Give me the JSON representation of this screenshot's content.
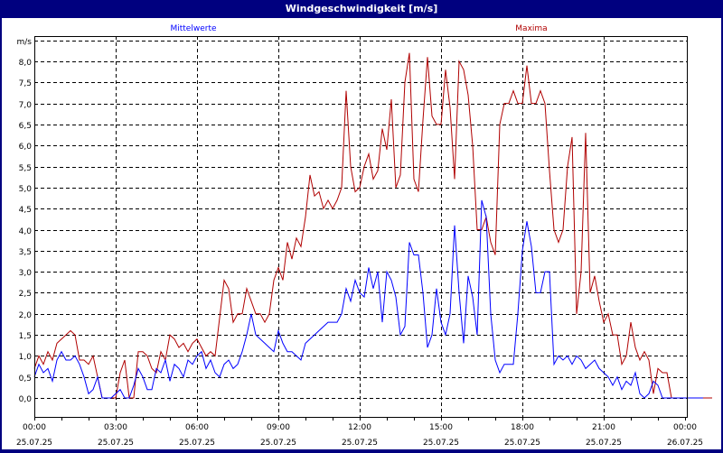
{
  "window": {
    "title": "Windgeschwindigkeit [m/s]"
  },
  "legend": {
    "mean_label": "Mittelwerte",
    "max_label": "Maxima",
    "mean_color": "#0000ff",
    "max_color": "#b00000"
  },
  "axis": {
    "y_unit": "m/s",
    "y_ticks": [
      "0,0",
      "0,5",
      "1,0",
      "1,5",
      "2,0",
      "2,5",
      "3,0",
      "3,5",
      "4,0",
      "4,5",
      "5,0",
      "5,5",
      "6,0",
      "6,5",
      "7,0",
      "7,5",
      "8,0"
    ],
    "x_ticks": [
      {
        "time": "00:00",
        "date": "25.07.25"
      },
      {
        "time": "03:00",
        "date": "25.07.25"
      },
      {
        "time": "06:00",
        "date": "25.07.25"
      },
      {
        "time": "09:00",
        "date": "25.07.25"
      },
      {
        "time": "12:00",
        "date": "25.07.25"
      },
      {
        "time": "15:00",
        "date": "25.07.25"
      },
      {
        "time": "18:00",
        "date": "25.07.25"
      },
      {
        "time": "21:00",
        "date": "25.07.25"
      },
      {
        "time": "00:00",
        "date": "26.07.25"
      }
    ]
  },
  "chart_data": {
    "type": "line",
    "title": "Windgeschwindigkeit [m/s]",
    "xlabel": "",
    "ylabel": "m/s",
    "ylim": [
      -0.4,
      8.5
    ],
    "x_range": [
      "25.07.25 00:00",
      "26.07.25 00:00"
    ],
    "x_step_minutes": 10,
    "grid": true,
    "legend_position": "top",
    "series": [
      {
        "name": "Mittelwerte",
        "color": "#0000ff",
        "values": [
          0.5,
          0.8,
          0.6,
          0.7,
          0.4,
          0.9,
          1.1,
          0.9,
          0.9,
          1.0,
          0.8,
          0.5,
          0.1,
          0.2,
          0.5,
          0.0,
          0.0,
          0.0,
          0.1,
          0.2,
          0.0,
          0.0,
          0.3,
          0.7,
          0.5,
          0.2,
          0.2,
          0.7,
          0.6,
          0.9,
          0.4,
          0.8,
          0.7,
          0.5,
          0.9,
          0.8,
          1.0,
          1.1,
          0.7,
          0.9,
          0.6,
          0.5,
          0.8,
          0.9,
          0.7,
          0.8,
          1.1,
          1.5,
          2.0,
          1.5,
          1.4,
          1.3,
          1.2,
          1.1,
          1.6,
          1.3,
          1.1,
          1.1,
          1.0,
          0.9,
          1.3,
          1.4,
          1.5,
          1.6,
          1.7,
          1.8,
          1.8,
          1.8,
          2.0,
          2.6,
          2.3,
          2.8,
          2.5,
          2.4,
          3.1,
          2.6,
          3.0,
          1.8,
          3.0,
          2.8,
          2.4,
          1.5,
          1.7,
          3.7,
          3.4,
          3.4,
          2.5,
          1.2,
          1.5,
          2.6,
          1.8,
          1.5,
          2.0,
          4.1,
          2.5,
          1.3,
          2.9,
          2.4,
          1.5,
          4.7,
          4.3,
          2.0,
          0.9,
          0.6,
          0.8,
          0.8,
          0.8,
          2.0,
          3.5,
          4.2,
          3.6,
          2.5,
          2.5,
          3.0,
          3.0,
          0.8,
          1.0,
          0.9,
          1.0,
          0.8,
          1.0,
          0.9,
          0.7,
          0.8,
          0.9,
          0.7,
          0.6,
          0.5,
          0.3,
          0.5,
          0.2,
          0.4,
          0.3,
          0.6,
          0.1,
          0.0,
          0.1,
          0.4,
          0.3,
          0.0,
          0.0,
          0.0,
          0.0,
          0.0,
          0.0,
          0.0,
          0.0,
          0.0,
          0.0
        ]
      },
      {
        "name": "Maxima",
        "color": "#b00000",
        "values": [
          0.7,
          1.0,
          0.8,
          1.1,
          0.9,
          1.3,
          1.4,
          1.5,
          1.6,
          1.5,
          0.9,
          0.9,
          0.8,
          1.0,
          0.5,
          0.0,
          0.0,
          0.0,
          0.0,
          0.6,
          0.9,
          0.0,
          0.0,
          1.1,
          1.1,
          1.0,
          0.7,
          0.6,
          1.1,
          0.9,
          1.5,
          1.4,
          1.2,
          1.3,
          1.1,
          1.3,
          1.4,
          1.2,
          1.0,
          1.1,
          1.0,
          1.9,
          2.8,
          2.6,
          1.8,
          2.0,
          2.0,
          2.6,
          2.3,
          2.0,
          2.0,
          1.8,
          2.0,
          2.8,
          3.1,
          2.8,
          3.7,
          3.3,
          3.8,
          3.6,
          4.3,
          5.3,
          4.8,
          4.9,
          4.5,
          4.7,
          4.5,
          4.7,
          5.0,
          7.3,
          5.5,
          4.9,
          5.0,
          5.5,
          5.8,
          5.2,
          5.4,
          6.4,
          5.9,
          7.1,
          5.0,
          5.3,
          7.5,
          8.2,
          5.2,
          4.9,
          6.6,
          8.1,
          6.7,
          6.5,
          6.5,
          7.8,
          6.9,
          5.2,
          8.0,
          7.8,
          7.2,
          6.0,
          4.0,
          4.0,
          4.3,
          3.7,
          3.4,
          6.5,
          7.0,
          7.0,
          7.3,
          7.0,
          7.0,
          7.9,
          7.0,
          7.0,
          7.3,
          7.0,
          5.4,
          4.0,
          3.7,
          4.0,
          5.5,
          6.2,
          2.0,
          3.0,
          6.3,
          2.5,
          2.9,
          2.3,
          1.8,
          2.0,
          1.5,
          1.5,
          0.8,
          1.0,
          1.8,
          1.2,
          0.9,
          1.1,
          0.9,
          0.1,
          0.7,
          0.6,
          0.6,
          0.0,
          0.0,
          0.0,
          0.0,
          0.0,
          0.0,
          0.0,
          0.0,
          0.0,
          0.0
        ]
      }
    ]
  }
}
